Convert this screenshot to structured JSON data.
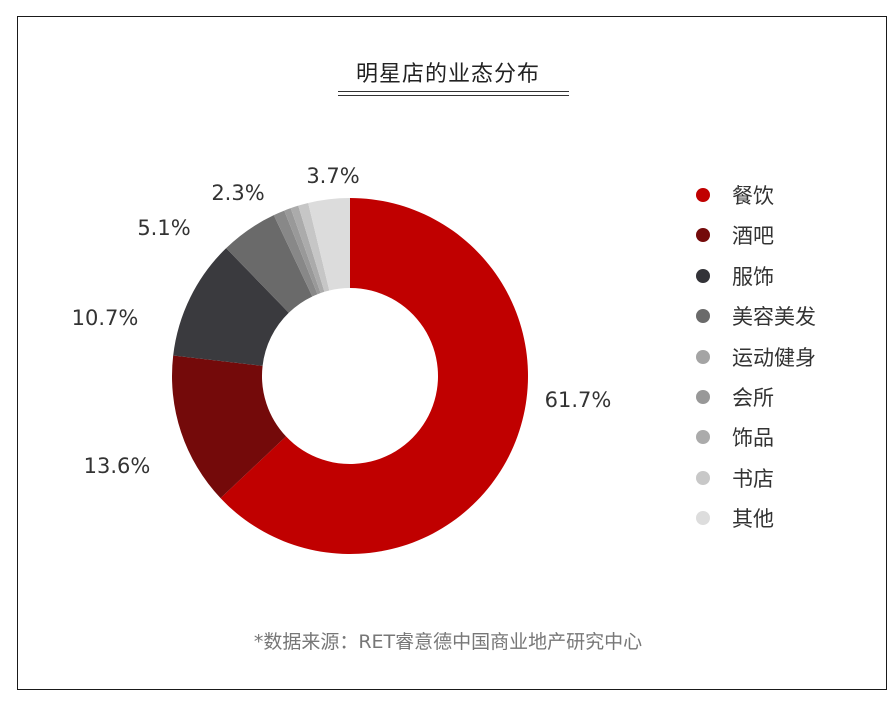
{
  "title": "明星店的业态分布",
  "source": "*数据来源：RET睿意德中国商业地产研究中心",
  "chart_data": {
    "type": "pie",
    "donut": true,
    "title": "明星店的业态分布",
    "legend_position": "right",
    "slices": [
      {
        "name": "餐饮",
        "value": 61.7,
        "label": "61.7%",
        "color": "#c00000"
      },
      {
        "name": "酒吧",
        "value": 13.6,
        "label": "13.6%",
        "color": "#740a0a"
      },
      {
        "name": "服饰",
        "value": 10.7,
        "label": "10.7%",
        "color": "#3a3a3e"
      },
      {
        "name": "美容美发",
        "value": 5.1,
        "label": "5.1%",
        "color": "#6a6a6a"
      },
      {
        "name": "运动健身",
        "value": 1.0,
        "label": "",
        "color": "#888888"
      },
      {
        "name": "会所",
        "value": 0.6,
        "label": "",
        "color": "#999999"
      },
      {
        "name": "饰品",
        "value": 0.7,
        "label": "2.3%",
        "color": "#ababab"
      },
      {
        "name": "书店",
        "value": 0.9,
        "label": "",
        "color": "#c6c6c6"
      },
      {
        "name": "其他",
        "value": 3.7,
        "label": "3.7%",
        "color": "#dcdcdc"
      }
    ],
    "legend_colors": [
      "#c00000",
      "#740a0a",
      "#333338",
      "#6a6a6a",
      "#a4a4a4",
      "#989898",
      "#ababab",
      "#c8c8c8",
      "#dddddd"
    ]
  }
}
